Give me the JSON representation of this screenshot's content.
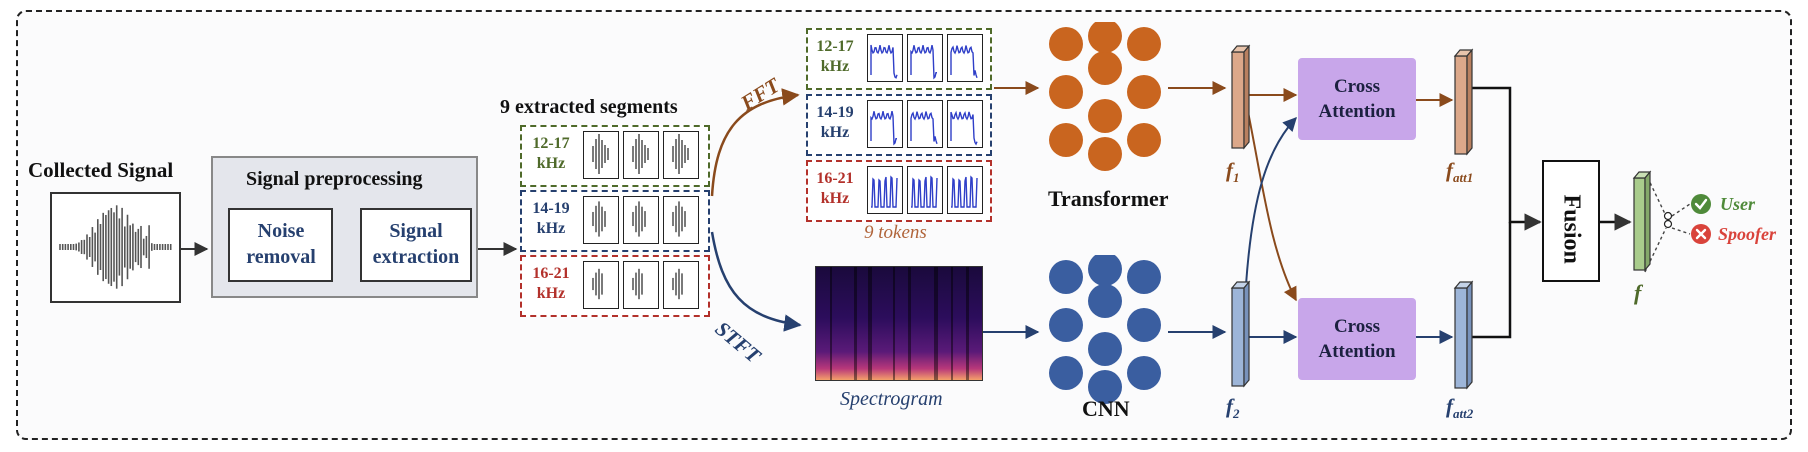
{
  "collected_signal": {
    "title": "Collected Signal"
  },
  "preprocessing": {
    "title": "Signal preprocessing",
    "noise": "Noise removal",
    "extraction": "Signal extraction"
  },
  "segments": {
    "title": "9 extracted segments",
    "rows": [
      {
        "label": "12-17 kHz",
        "color": "#4f6a2a"
      },
      {
        "label": "14-19 kHz",
        "color": "#26406f"
      },
      {
        "label": "16-21 kHz",
        "color": "#b3312b"
      }
    ]
  },
  "branches": {
    "fft": "FFT",
    "stft": "STFT"
  },
  "tokens": {
    "caption": "9 tokens"
  },
  "spectrogram": {
    "caption": "Spectrogram"
  },
  "models": {
    "transformer": "Transformer",
    "cnn": "CNN"
  },
  "features": {
    "f1": "f",
    "f1_sub": "1",
    "f2": "f",
    "f2_sub": "2",
    "fatt1": "f",
    "fatt1_sub": "att1",
    "fatt2": "f",
    "fatt2_sub": "att2",
    "f": "f"
  },
  "attention": {
    "label": "Cross Attention"
  },
  "fusion": {
    "label": "Fusion"
  },
  "outputs": {
    "user": "User",
    "spoofer": "Spoofer"
  },
  "colors": {
    "transformer": "#c9651f",
    "cnn": "#3a5ea0",
    "attention": "#c8a6ea",
    "f1_bar": "#dca88a",
    "f2_bar": "#9db5d8",
    "f_bar": "#a9cc8c",
    "user": "#4f8a3a",
    "spoofer": "#d9433b"
  }
}
